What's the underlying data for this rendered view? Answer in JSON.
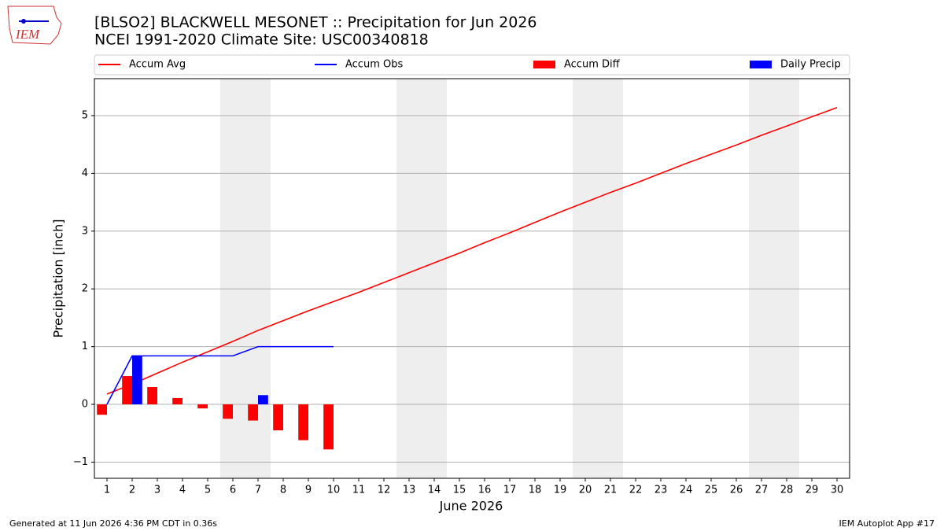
{
  "logo_text": "IEM",
  "footer_left": "Generated at 11 Jun 2026 4:36 PM CDT in 0.36s",
  "footer_right": "IEM Autoplot App #17",
  "chart_data": {
    "type": "line",
    "title": "[BLSO2] BLACKWELL MESONET :: Precipitation for Jun 2026",
    "subtitle": "NCEI 1991-2020 Climate Site: USC00340818",
    "x_label": "June 2026",
    "y_label": "Precipitation [inch]",
    "x": [
      1,
      2,
      3,
      4,
      5,
      6,
      7,
      8,
      9,
      10,
      11,
      12,
      13,
      14,
      15,
      16,
      17,
      18,
      19,
      20,
      21,
      22,
      23,
      24,
      25,
      26,
      27,
      28,
      29,
      30
    ],
    "xlim": [
      0.5,
      30.5
    ],
    "xticks": [
      1,
      2,
      3,
      4,
      5,
      6,
      7,
      8,
      9,
      10,
      11,
      12,
      13,
      14,
      15,
      16,
      17,
      18,
      19,
      20,
      21,
      22,
      23,
      24,
      25,
      26,
      27,
      28,
      29,
      30
    ],
    "ylim": [
      -1.28,
      5.64
    ],
    "yticks": [
      {
        "value": -1,
        "label": "−1"
      },
      0,
      1,
      2,
      3,
      4,
      5
    ],
    "grid": true,
    "legend": "top",
    "series": [
      {
        "name": "Accum Avg",
        "kind": "line",
        "color": "#ff0000",
        "values": [
          0.18,
          0.35,
          0.54,
          0.73,
          0.91,
          1.09,
          1.28,
          1.45,
          1.62,
          1.78,
          1.94,
          2.11,
          2.28,
          2.45,
          2.62,
          2.8,
          2.97,
          3.15,
          3.33,
          3.5,
          3.67,
          3.83,
          4.0,
          4.17,
          4.33,
          4.49,
          4.66,
          4.82,
          4.98,
          5.14
        ]
      },
      {
        "name": "Accum Obs",
        "kind": "line",
        "color": "#0000ff",
        "values": [
          0,
          0.84,
          0.84,
          0.84,
          0.84,
          0.84,
          1.0,
          1.0,
          1.0,
          1.0,
          null,
          null,
          null,
          null,
          null,
          null,
          null,
          null,
          null,
          null,
          null,
          null,
          null,
          null,
          null,
          null,
          null,
          null,
          null,
          null
        ]
      },
      {
        "name": "Accum Diff",
        "kind": "bar",
        "offset": "left",
        "color": "#ff0000",
        "values": [
          -0.18,
          0.49,
          0.3,
          0.11,
          -0.07,
          -0.25,
          -0.28,
          -0.45,
          -0.62,
          -0.78,
          null,
          null,
          null,
          null,
          null,
          null,
          null,
          null,
          null,
          null,
          null,
          null,
          null,
          null,
          null,
          null,
          null,
          null,
          null,
          null
        ]
      },
      {
        "name": "Daily Precip",
        "kind": "bar",
        "offset": "right",
        "color": "#0000ff",
        "values": [
          0,
          0.84,
          0,
          0,
          0,
          0,
          0.16,
          0,
          0,
          0,
          null,
          null,
          null,
          null,
          null,
          null,
          null,
          null,
          null,
          null,
          null,
          null,
          null,
          null,
          null,
          null,
          null,
          null,
          null,
          null
        ]
      }
    ]
  }
}
